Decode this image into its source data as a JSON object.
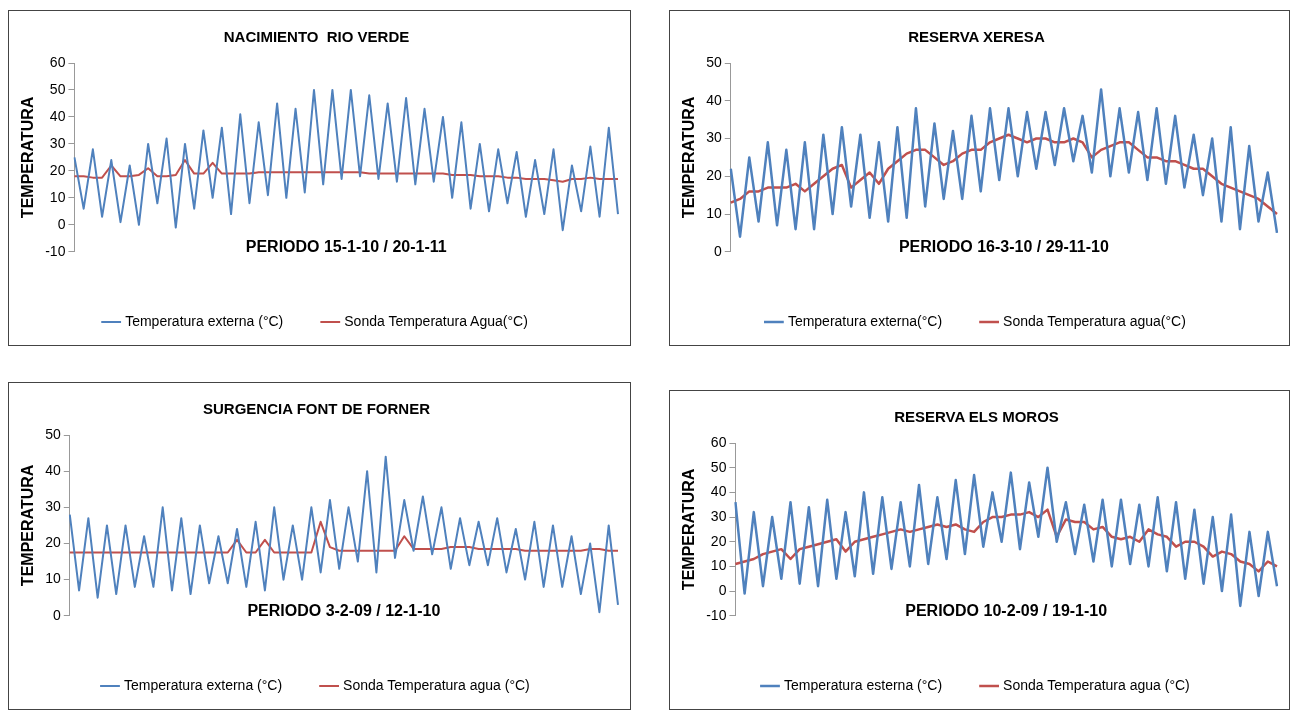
{
  "chart_data": [
    {
      "type": "line",
      "title": "NACIMIENTO  RIO VERDE",
      "xlabel": "PERIODO 15-1-10 / 20-1-11",
      "ylabel": "TEMPERATURA",
      "categories": [
        null,
        null,
        null,
        null,
        null,
        null,
        null,
        null,
        null,
        null,
        null,
        null,
        null,
        null,
        null,
        null,
        null,
        null,
        null,
        null,
        null,
        null,
        null,
        null,
        null,
        null,
        null,
        null,
        null,
        null,
        null,
        null,
        null,
        null,
        null,
        null,
        null,
        null,
        null,
        null,
        null,
        null,
        null,
        null,
        null,
        null,
        null,
        null,
        null,
        null,
        null,
        null,
        null,
        null,
        null,
        null,
        null,
        null,
        null,
        null
      ],
      "series": [
        {
          "name": "Temperatura externa (°C)",
          "color": "#4f81bd",
          "values": [
            25,
            6,
            28,
            3,
            24,
            1,
            22,
            0,
            30,
            8,
            32,
            -1,
            30,
            6,
            35,
            10,
            36,
            4,
            41,
            8,
            38,
            11,
            45,
            10,
            43,
            12,
            50,
            15,
            50,
            17,
            50,
            18,
            48,
            17,
            45,
            16,
            47,
            15,
            43,
            16,
            40,
            10,
            38,
            6,
            30,
            5,
            28,
            8,
            27,
            3,
            24,
            4,
            28,
            -2,
            22,
            5,
            29,
            3,
            36,
            4
          ]
        },
        {
          "name": "Sonda Temperatura Agua(°C)",
          "color": "#c0504d",
          "values": [
            18,
            18,
            17.5,
            17.5,
            22,
            18,
            18,
            18.5,
            21,
            18,
            18,
            18.5,
            24,
            19,
            19,
            23,
            19,
            19,
            19,
            19,
            19.5,
            19.5,
            19.5,
            19.5,
            19.5,
            19.5,
            19.5,
            19.5,
            19.5,
            19.5,
            19.5,
            19.5,
            19,
            19,
            19,
            19,
            19,
            19,
            19,
            19,
            19,
            18.5,
            18.5,
            18.5,
            18,
            18,
            18,
            17.5,
            17.5,
            17,
            17,
            17,
            16.5,
            16,
            17,
            17,
            17.5,
            17,
            17,
            17
          ]
        }
      ],
      "ylim": [
        -10,
        60
      ],
      "yticks": [
        -10,
        0,
        10,
        20,
        30,
        40,
        50,
        60
      ],
      "grid": false,
      "legend": "bottom",
      "marker": "none",
      "tick_labels": "y"
    },
    {
      "type": "line",
      "title": "RESERVA XERESA",
      "xlabel": "PERIODO 16-3-10 / 29-11-10",
      "ylabel": "TEMPERATURA",
      "categories": [
        null,
        null,
        null,
        null,
        null,
        null,
        null,
        null,
        null,
        null,
        null,
        null,
        null,
        null,
        null,
        null,
        null,
        null,
        null,
        null,
        null,
        null,
        null,
        null,
        null,
        null,
        null,
        null,
        null,
        null,
        null,
        null,
        null,
        null,
        null,
        null,
        null,
        null,
        null,
        null,
        null,
        null,
        null,
        null,
        null,
        null,
        null,
        null,
        null,
        null,
        null,
        null,
        null,
        null,
        null,
        null,
        null,
        null,
        null,
        null
      ],
      "series": [
        {
          "name": "Temperatura externa(°C)",
          "color": "#4f81bd",
          "values": [
            22,
            4,
            25,
            8,
            29,
            7,
            27,
            6,
            29,
            6,
            31,
            10,
            33,
            12,
            31,
            9,
            29,
            8,
            33,
            9,
            38,
            12,
            34,
            14,
            32,
            14,
            36,
            16,
            38,
            19,
            38,
            20,
            37,
            22,
            37,
            23,
            38,
            24,
            36,
            21,
            43,
            20,
            38,
            21,
            37,
            19,
            38,
            18,
            36,
            17,
            31,
            15,
            30,
            8,
            33,
            6,
            28,
            8,
            21,
            5
          ]
        },
        {
          "name": "Sonda Temperatura agua(°C)",
          "color": "#c0504d",
          "values": [
            13,
            14,
            16,
            16,
            17,
            17,
            17,
            18,
            16,
            18,
            20,
            22,
            23,
            17,
            19,
            21,
            18,
            22,
            24,
            26,
            27,
            27,
            25,
            23,
            24,
            26,
            27,
            27,
            29,
            30,
            31,
            30,
            29,
            30,
            30,
            29,
            29,
            30,
            29,
            25,
            27,
            28,
            29,
            29,
            27,
            25,
            25,
            24,
            24,
            23,
            22,
            22,
            20,
            18,
            17,
            16,
            15,
            14,
            12,
            10
          ]
        }
      ],
      "ylim": [
        0,
        50
      ],
      "yticks": [
        0,
        10,
        20,
        30,
        40,
        50
      ],
      "grid": false,
      "legend": "bottom",
      "marker": "none",
      "tick_labels": "y"
    },
    {
      "type": "line",
      "title": "SURGENCIA FONT DE FORNER",
      "xlabel": "PERIODO 3-2-09 / 12-1-10",
      "ylabel": "TEMPERATURA",
      "categories": [
        null,
        null,
        null,
        null,
        null,
        null,
        null,
        null,
        null,
        null,
        null,
        null,
        null,
        null,
        null,
        null,
        null,
        null,
        null,
        null,
        null,
        null,
        null,
        null,
        null,
        null,
        null,
        null,
        null,
        null,
        null,
        null,
        null,
        null,
        null,
        null,
        null,
        null,
        null,
        null,
        null,
        null,
        null,
        null,
        null,
        null,
        null,
        null,
        null,
        null,
        null,
        null,
        null,
        null,
        null,
        null,
        null,
        null,
        null,
        null
      ],
      "series": [
        {
          "name": "Temperatura externa (°C)",
          "color": "#4f81bd",
          "values": [
            28,
            7,
            27,
            5,
            25,
            6,
            25,
            8,
            22,
            8,
            30,
            7,
            27,
            6,
            25,
            9,
            22,
            9,
            24,
            8,
            26,
            7,
            30,
            10,
            25,
            10,
            30,
            12,
            32,
            13,
            30,
            15,
            40,
            12,
            44,
            16,
            32,
            18,
            33,
            17,
            30,
            13,
            27,
            14,
            26,
            14,
            27,
            12,
            24,
            10,
            26,
            8,
            25,
            8,
            22,
            6,
            20,
            1,
            25,
            3
          ]
        },
        {
          "name": "Sonda Temperatura agua (°C)",
          "color": "#c0504d",
          "values": [
            17.5,
            17.5,
            17.5,
            17.5,
            17.5,
            17.5,
            17.5,
            17.5,
            17.5,
            17.5,
            17.5,
            17.5,
            17.5,
            17.5,
            17.5,
            17.5,
            17.5,
            17.5,
            21,
            17.5,
            17.5,
            21,
            17.5,
            17.5,
            17.5,
            17.5,
            17.5,
            26,
            19,
            18,
            18,
            18,
            18,
            18,
            18,
            18,
            22,
            18.5,
            18.5,
            18.5,
            18.5,
            19,
            19,
            19,
            18.5,
            18.5,
            18.5,
            18.5,
            18.5,
            18,
            18,
            18,
            18,
            18,
            18,
            18,
            18.5,
            18.5,
            18,
            18
          ]
        }
      ],
      "ylim": [
        0,
        50
      ],
      "yticks": [
        0,
        10,
        20,
        30,
        40,
        50
      ],
      "grid": false,
      "legend": "bottom",
      "marker": "none",
      "tick_labels": "y"
    },
    {
      "type": "line",
      "title": "RESERVA ELS MOROS",
      "xlabel": "PERIODO 10-2-09 / 19-1-10",
      "ylabel": "TEMPERATURA",
      "categories": [
        null,
        null,
        null,
        null,
        null,
        null,
        null,
        null,
        null,
        null,
        null,
        null,
        null,
        null,
        null,
        null,
        null,
        null,
        null,
        null,
        null,
        null,
        null,
        null,
        null,
        null,
        null,
        null,
        null,
        null,
        null,
        null,
        null,
        null,
        null,
        null,
        null,
        null,
        null,
        null,
        null,
        null,
        null,
        null,
        null,
        null,
        null,
        null,
        null,
        null,
        null,
        null,
        null,
        null,
        null,
        null,
        null,
        null,
        null,
        null
      ],
      "series": [
        {
          "name": "Temperatura esterna (°C)",
          "color": "#4f81bd",
          "values": [
            36,
            -1,
            32,
            2,
            30,
            5,
            36,
            3,
            34,
            2,
            37,
            5,
            32,
            6,
            40,
            7,
            38,
            9,
            36,
            10,
            43,
            11,
            38,
            13,
            45,
            15,
            47,
            18,
            40,
            20,
            48,
            17,
            44,
            22,
            50,
            20,
            36,
            15,
            35,
            12,
            37,
            10,
            37,
            11,
            35,
            10,
            38,
            8,
            36,
            5,
            33,
            3,
            30,
            0,
            31,
            -6,
            24,
            -2,
            24,
            2
          ]
        },
        {
          "name": "Sonda Temperatura agua (°C)",
          "color": "#c0504d",
          "values": [
            11,
            12,
            13,
            15,
            16,
            17,
            13,
            17,
            18,
            19,
            20,
            21,
            16,
            20,
            21,
            22,
            23,
            24,
            25,
            24,
            25,
            26,
            27,
            26,
            27,
            25,
            24,
            28,
            30,
            30,
            31,
            31,
            32,
            30,
            33,
            22,
            29,
            28,
            28,
            25,
            26,
            22,
            21,
            22,
            20,
            25,
            23,
            22,
            18,
            20,
            20,
            18,
            14,
            16,
            15,
            12,
            11,
            8,
            12,
            10
          ]
        }
      ],
      "ylim": [
        -10,
        60
      ],
      "yticks": [
        -10,
        0,
        10,
        20,
        30,
        40,
        50,
        60
      ],
      "grid": false,
      "legend": "bottom",
      "marker": "none",
      "tick_labels": "y"
    }
  ]
}
